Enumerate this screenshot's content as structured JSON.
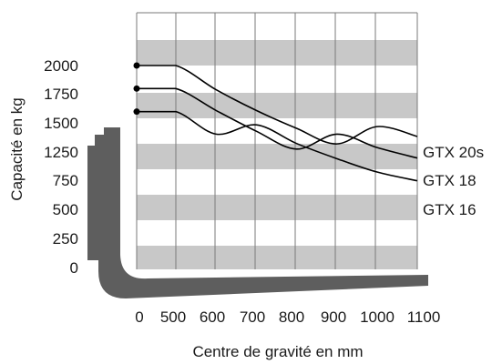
{
  "chart_data": {
    "type": "line",
    "title": "",
    "xlabel": "Centre de gravité en mm",
    "ylabel": "Capacité en kg",
    "x_ticks": [
      "0",
      "500",
      "600",
      "700",
      "800",
      "900",
      "1000",
      "1100"
    ],
    "y_ticks": [
      "0",
      "250",
      "500",
      "750",
      "1250",
      "1500",
      "1750",
      "2000"
    ],
    "xlim": [
      500,
      1100
    ],
    "grid": true,
    "legend": "inline-right",
    "colors": {
      "line": "#000000",
      "band": "#c8c8c8",
      "grid": "#7a7a7a",
      "fork": "#5e5e5e"
    },
    "series": [
      {
        "name": "GTX 20s",
        "x": [
          0,
          500,
          600,
          700,
          800,
          900,
          1000,
          1100
        ],
        "y": [
          2000,
          2000,
          1790,
          1610,
          1455,
          1320,
          1210,
          1125
        ]
      },
      {
        "name": "GTX 18",
        "x": [
          0,
          500,
          600,
          700,
          800,
          900,
          1000,
          1100
        ],
        "y": [
          1800,
          1800,
          1610,
          1430,
          1275,
          1145,
          1030,
          940
        ]
      },
      {
        "name": "GTX 16",
        "x": [
          0,
          500,
          600,
          700,
          800,
          900,
          1000,
          1100
        ],
        "y": [
          1600,
          1600,
          1405,
          1225,
          1065,
          935,
          820,
          745
        ]
      }
    ]
  }
}
